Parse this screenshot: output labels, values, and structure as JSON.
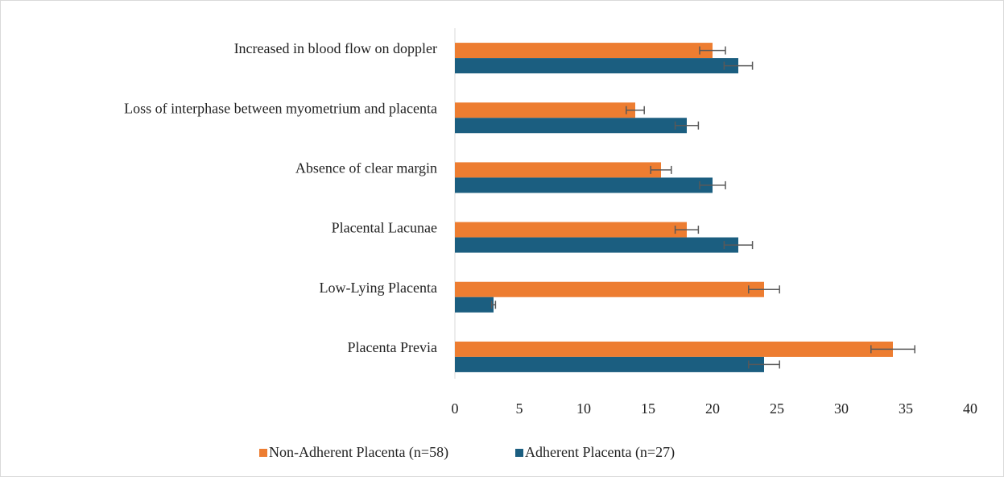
{
  "chart_data": {
    "type": "hbar",
    "categories": [
      "Increased in blood flow on doppler",
      "Loss of interphase between myometrium and placenta",
      "Absence of clear margin",
      "Placental Lacunae",
      "Low-Lying Placenta",
      "Placenta Previa"
    ],
    "series": [
      {
        "name": "Non-Adherent Placenta (n=58)",
        "color": "#ed7d31",
        "values": [
          20,
          14,
          16,
          18,
          24,
          34
        ],
        "errors": [
          1,
          0.7,
          0.8,
          0.9,
          1.2,
          1.7
        ]
      },
      {
        "name": "Adherent Placenta (n=27)",
        "color": "#1b5e80",
        "values": [
          22,
          18,
          20,
          22,
          3,
          24
        ],
        "errors": [
          1.1,
          0.9,
          1,
          1.1,
          0.15,
          1.2
        ]
      }
    ],
    "xlim": [
      0,
      40
    ],
    "xticks": [
      0,
      5,
      10,
      15,
      20,
      25,
      30,
      35,
      40
    ],
    "legend": "bottom"
  }
}
